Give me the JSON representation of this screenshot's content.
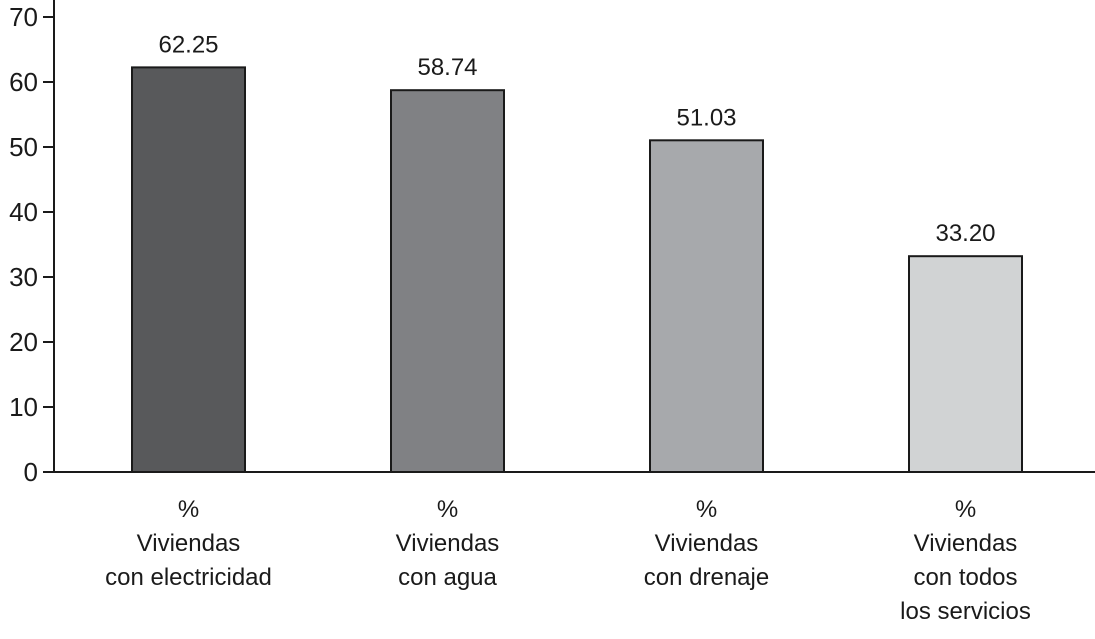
{
  "chart_data": {
    "type": "bar",
    "categories": [
      [
        "%",
        "Viviendas",
        "con electricidad"
      ],
      [
        "%",
        "Viviendas",
        "con agua"
      ],
      [
        "%",
        "Viviendas",
        "con drenaje"
      ],
      [
        "%",
        "Viviendas",
        "con todos",
        "los servicios"
      ]
    ],
    "values": [
      62.25,
      58.74,
      51.03,
      33.2
    ],
    "data_labels": [
      "62.25",
      "58.74",
      "51.03",
      "33.20"
    ],
    "bar_colors": [
      "#58595b",
      "#808184",
      "#a7a9ac",
      "#d1d3d4"
    ],
    "yticks": [
      0,
      10,
      20,
      30,
      40,
      50,
      60,
      70
    ],
    "ylim": [
      0,
      72
    ],
    "title": "",
    "xlabel": "",
    "ylabel": "",
    "grid": false,
    "legend": "none"
  }
}
